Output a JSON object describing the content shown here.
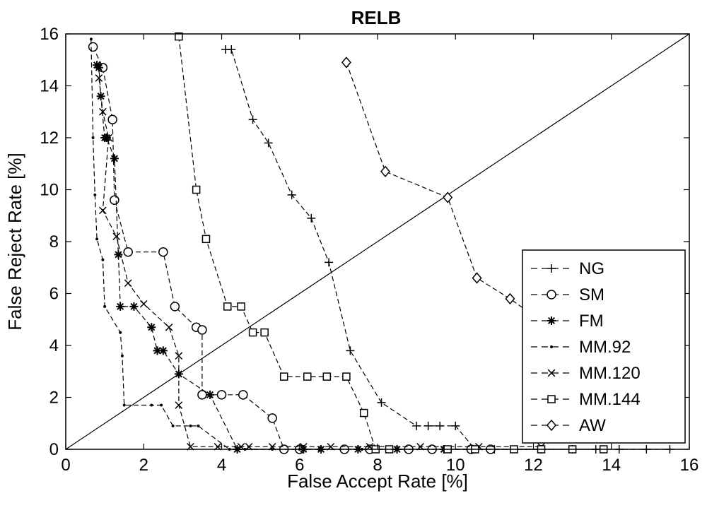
{
  "chart_data": {
    "type": "line",
    "title": "RELB",
    "xlabel": "False Accept Rate [%]",
    "ylabel": "False Reject Rate [%]",
    "xlim": [
      0,
      16
    ],
    "ylim": [
      0,
      16
    ],
    "xticks": [
      "0",
      "2",
      "4",
      "6",
      "8",
      "10",
      "12",
      "14",
      "16"
    ],
    "yticks": [
      "0",
      "2",
      "4",
      "6",
      "8",
      "10",
      "12",
      "14",
      "16"
    ],
    "grid": false,
    "legend_position": "bottom-right",
    "reference_line": {
      "x": [
        0,
        16
      ],
      "y": [
        0,
        16
      ],
      "style": "solid"
    },
    "colors": {
      "line": "#000000",
      "background": "#ffffff"
    },
    "series": [
      {
        "name": "NG",
        "marker": "plus",
        "x": [
          4.1,
          4.25,
          4.8,
          5.2,
          5.8,
          6.3,
          6.75,
          7.3,
          8.1,
          9.0,
          9.3,
          9.6,
          10.0,
          10.5,
          11.0,
          12.2,
          13.0,
          13.6,
          14.2,
          14.9,
          15.5
        ],
        "y": [
          15.4,
          15.4,
          12.7,
          11.8,
          9.8,
          8.9,
          7.2,
          3.8,
          1.8,
          0.9,
          0.9,
          0.9,
          0.9,
          0,
          0,
          0,
          0,
          0,
          0,
          0,
          0
        ]
      },
      {
        "name": "SM",
        "marker": "circle",
        "x": [
          0.7,
          0.95,
          1.2,
          1.25,
          1.6,
          2.5,
          2.8,
          3.35,
          3.5,
          3.5,
          4.0,
          4.55,
          5.3,
          5.6,
          6.0,
          7.15,
          7.8,
          8.8,
          9.4,
          10.4,
          10.9
        ],
        "y": [
          15.5,
          14.7,
          12.7,
          9.6,
          7.6,
          7.6,
          5.5,
          4.7,
          4.6,
          2.1,
          2.1,
          2.1,
          1.2,
          0,
          0,
          0,
          0,
          0,
          0,
          0,
          0
        ]
      },
      {
        "name": "FM",
        "marker": "star",
        "x": [
          0.8,
          0.85,
          0.9,
          1.0,
          1.05,
          1.25,
          1.35,
          1.4,
          1.75,
          2.2,
          2.35,
          2.5,
          2.9,
          3.7,
          4.4,
          6.1,
          6.55,
          7.5,
          8.5,
          9.7,
          12.2
        ],
        "y": [
          14.8,
          14.7,
          13.6,
          12.0,
          12.0,
          11.2,
          7.5,
          5.5,
          5.5,
          4.7,
          3.8,
          3.8,
          2.9,
          2.1,
          0,
          0,
          0,
          0,
          0,
          0,
          0
        ]
      },
      {
        "name": "MM.92",
        "marker": "point",
        "x": [
          0.65,
          0.7,
          0.75,
          0.8,
          0.95,
          1.0,
          1.4,
          1.45,
          1.5,
          2.2,
          2.45,
          2.75,
          3.2,
          3.4,
          4.2,
          4.6,
          5.3,
          6.0,
          6.5,
          7.6,
          8.5
        ],
        "y": [
          15.8,
          12.0,
          9.8,
          8.1,
          7.3,
          5.5,
          4.5,
          3.6,
          1.7,
          1.7,
          1.7,
          0.9,
          0.9,
          0.9,
          0,
          0,
          0,
          0,
          0,
          0,
          0
        ]
      },
      {
        "name": "MM.120",
        "marker": "x",
        "x": [
          0.85,
          0.95,
          1.1,
          0.95,
          1.3,
          1.6,
          2.0,
          2.65,
          2.9,
          2.9,
          3.2,
          3.9,
          4.5,
          4.7,
          5.3,
          6.1,
          6.8,
          7.8,
          9.1,
          10.6,
          12.2
        ],
        "y": [
          14.3,
          13.0,
          12.0,
          9.2,
          8.2,
          6.4,
          5.6,
          4.7,
          3.6,
          1.7,
          0.1,
          0.1,
          0.1,
          0.1,
          0.1,
          0.1,
          0.1,
          0.1,
          0.1,
          0.1,
          0.1
        ]
      },
      {
        "name": "MM.144",
        "marker": "square",
        "x": [
          2.9,
          3.35,
          3.6,
          4.15,
          4.5,
          4.8,
          5.1,
          5.6,
          6.2,
          6.7,
          7.2,
          7.65,
          7.95,
          8.3,
          9.8,
          10.5,
          11.5,
          12.2,
          13.0,
          13.8
        ],
        "y": [
          15.9,
          10.0,
          8.1,
          5.5,
          5.5,
          4.5,
          4.5,
          2.8,
          2.8,
          2.8,
          2.8,
          1.4,
          0,
          0,
          0,
          0,
          0,
          0,
          0,
          0
        ]
      },
      {
        "name": "AW",
        "marker": "diamond",
        "x": [
          7.2,
          8.2,
          9.8,
          10.55,
          11.4,
          15.7
        ],
        "y": [
          14.9,
          10.7,
          9.7,
          6.6,
          5.8,
          1.2
        ]
      }
    ]
  }
}
